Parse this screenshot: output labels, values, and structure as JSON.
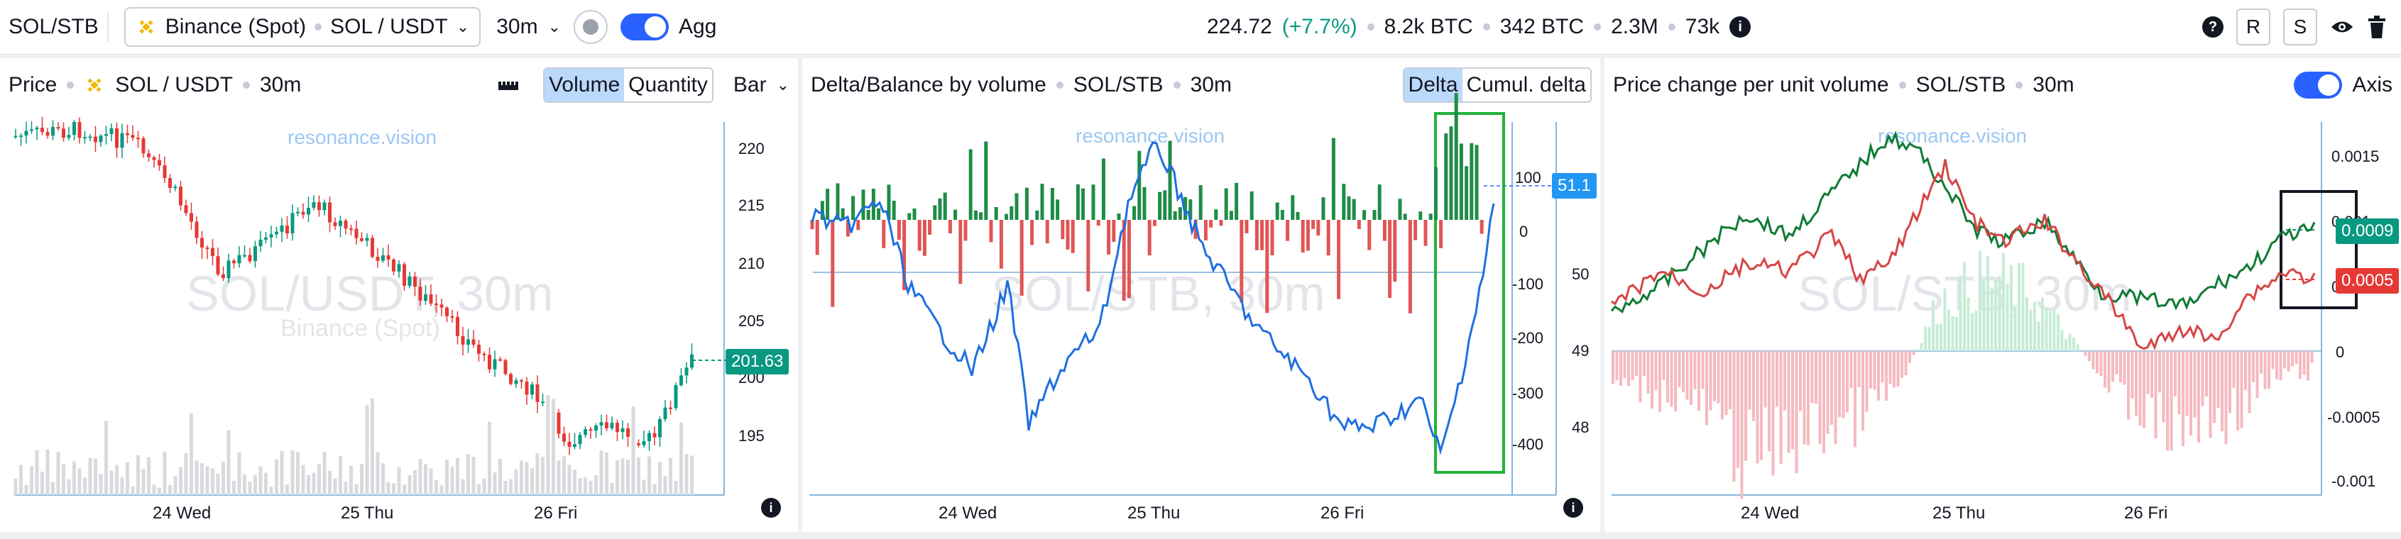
{
  "topbar": {
    "pair": "SOL/STB",
    "exchange": "Binance (Spot)",
    "symbol": "SOL / USDT",
    "timeframe": "30m",
    "agg_label": "Agg",
    "price": "224.72",
    "change": "(+7.7%)",
    "stat1": "8.2k BTC",
    "stat2": "342 BTC",
    "stat3": "2.3M",
    "stat4": "73k",
    "btn_r": "R",
    "btn_s": "S"
  },
  "price_panel": {
    "title": "Price",
    "symbol": "SOL / USDT",
    "timeframe": "30m",
    "seg_volume": "Volume",
    "seg_quantity": "Quantity",
    "type": "Bar",
    "watermark_brand": "resonance.vision",
    "watermark_big": "SOL/USDT, 30m",
    "watermark_small": "Binance (Spot)",
    "y_ticks": [
      "220",
      "215",
      "210",
      "205",
      "200",
      "195"
    ],
    "x_ticks": [
      "24 Wed",
      "25 Thu",
      "26 Fri"
    ],
    "last_price": "201.63",
    "accent": "#089981"
  },
  "delta_panel": {
    "title": "Delta/Balance by volume",
    "symbol": "SOL/STB",
    "timeframe": "30m",
    "seg_delta": "Delta",
    "seg_cumul": "Cumul. delta",
    "watermark_brand": "resonance.vision",
    "watermark_big": "SOL/STB, 30m",
    "y_left_ticks": [
      "100",
      "0",
      "-100",
      "-200",
      "-300",
      "-400"
    ],
    "y_right_ticks": [
      "50",
      "49",
      "48"
    ],
    "x_ticks": [
      "24 Wed",
      "25 Thu",
      "26 Fri"
    ],
    "value_tag": "51.1",
    "highlight_color": "#22b33a"
  },
  "pcv_panel": {
    "title": "Price change per unit volume",
    "symbol": "SOL/STB",
    "timeframe": "30m",
    "axis_label": "Axis",
    "watermark_brand": "resonance.vision",
    "watermark_big": "SOL/STB, 30m",
    "y_ticks": [
      "0.0015",
      "0.001",
      "0.0005",
      "0",
      "-0.0005",
      "-0.001"
    ],
    "x_ticks": [
      "24 Wed",
      "25 Thu",
      "26 Fri"
    ],
    "tag_green": "0.0009",
    "tag_red": "0.0005"
  }
}
